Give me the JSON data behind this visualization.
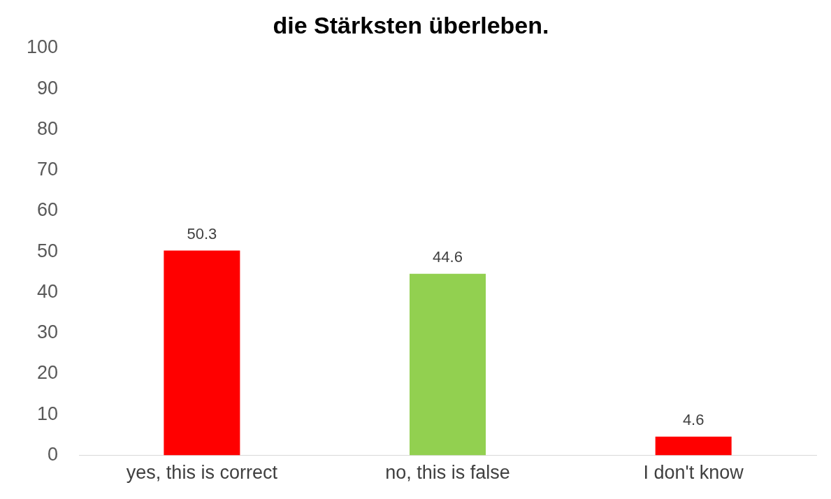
{
  "chart_data": {
    "type": "bar",
    "title": "die Stärksten überleben.",
    "categories": [
      "yes, this is correct",
      "no, this is false",
      "I don't know"
    ],
    "values": [
      50.3,
      44.6,
      4.6
    ],
    "colors": [
      "#ff0000",
      "#92d050",
      "#ff0000"
    ],
    "ylim": [
      0,
      100
    ],
    "yticks": [
      0,
      10,
      20,
      30,
      40,
      50,
      60,
      70,
      80,
      90,
      100
    ],
    "grid": false,
    "data_labels": true,
    "legend": false
  }
}
